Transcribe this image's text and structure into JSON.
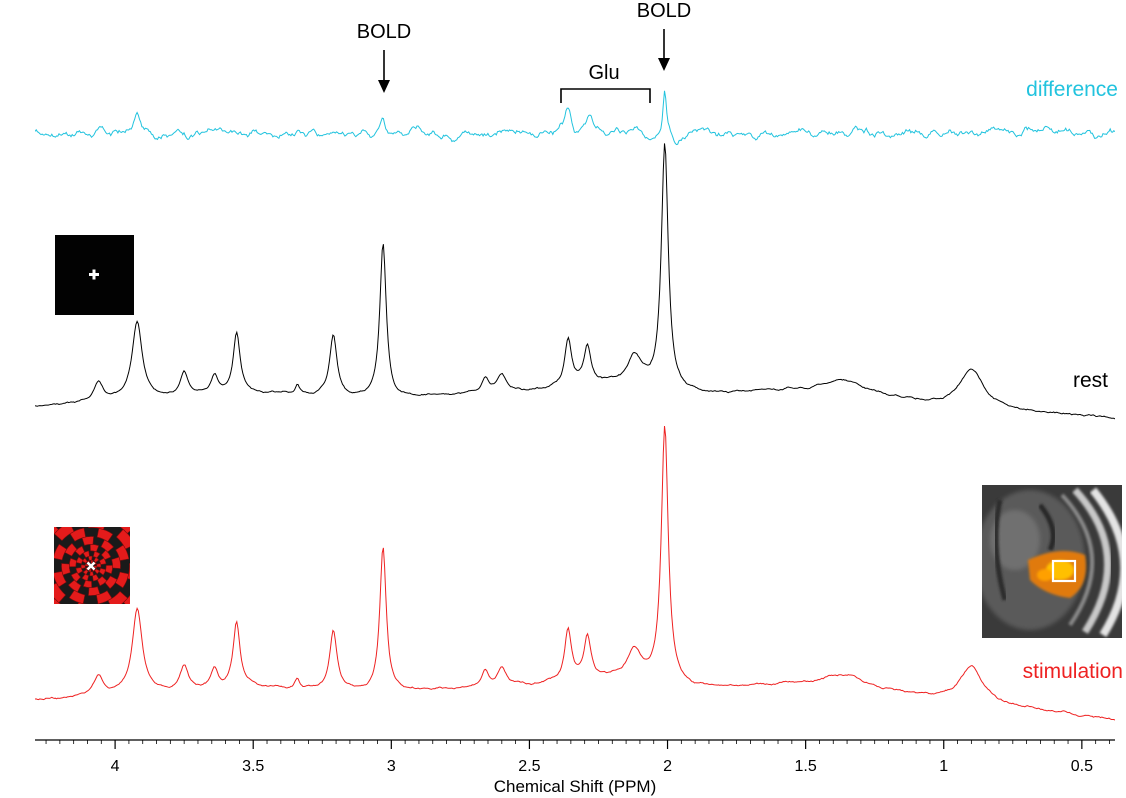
{
  "chart_data": {
    "type": "line",
    "title": "",
    "xlabel": "Chemical Shift (PPM)",
    "ylabel": "",
    "xlim": [
      4.29,
      0.38
    ],
    "x_reversed": true,
    "xticks": [
      4,
      3.5,
      3,
      2.5,
      2,
      1.5,
      1,
      0.5
    ],
    "xtick_labels": [
      "4",
      "3.5",
      "3",
      "2.5",
      "2",
      "1.5",
      "1",
      "0.5"
    ],
    "grid": false,
    "series": [
      {
        "name": "difference",
        "color": "#22c3de",
        "offset": 0.0,
        "noise": 0.1,
        "baseline": [
          [
            4.29,
            0.0
          ],
          [
            0.38,
            0.0
          ]
        ],
        "peaks": [
          [
            3.92,
            0.18,
            0.012
          ],
          [
            3.03,
            0.18,
            0.01
          ],
          [
            2.36,
            0.22,
            0.012
          ],
          [
            2.28,
            0.16,
            0.012
          ],
          [
            2.01,
            0.48,
            0.008
          ],
          [
            1.97,
            -0.14,
            0.012
          ]
        ]
      },
      {
        "name": "rest",
        "color": "#000000",
        "offset": 0.0,
        "noise": 0.012,
        "baseline": [
          [
            4.29,
            0.0
          ],
          [
            4.0,
            0.02
          ],
          [
            3.5,
            0.05
          ],
          [
            3.0,
            0.03
          ],
          [
            2.5,
            0.06
          ],
          [
            2.2,
            0.09
          ],
          [
            1.9,
            0.05
          ],
          [
            1.4,
            0.07
          ],
          [
            1.0,
            0.0
          ],
          [
            0.38,
            -0.05
          ]
        ],
        "peaks": [
          [
            4.06,
            0.08,
            0.02
          ],
          [
            3.92,
            0.32,
            0.022
          ],
          [
            3.75,
            0.1,
            0.018
          ],
          [
            3.64,
            0.08,
            0.016
          ],
          [
            3.56,
            0.25,
            0.015
          ],
          [
            3.34,
            0.04,
            0.01
          ],
          [
            3.21,
            0.25,
            0.016
          ],
          [
            3.03,
            0.63,
            0.014
          ],
          [
            2.66,
            0.06,
            0.015
          ],
          [
            2.6,
            0.07,
            0.02
          ],
          [
            2.36,
            0.19,
            0.015
          ],
          [
            2.29,
            0.16,
            0.015
          ],
          [
            2.12,
            0.12,
            0.03
          ],
          [
            2.01,
            1.0,
            0.015
          ],
          [
            1.35,
            0.04,
            0.08
          ],
          [
            0.9,
            0.16,
            0.05
          ]
        ]
      },
      {
        "name": "stimulation",
        "color": "#ee2222",
        "offset": 0.0,
        "noise": 0.012,
        "baseline": [
          [
            4.29,
            0.0
          ],
          [
            4.0,
            0.02
          ],
          [
            3.5,
            0.05
          ],
          [
            3.0,
            0.03
          ],
          [
            2.5,
            0.06
          ],
          [
            2.2,
            0.09
          ],
          [
            1.9,
            0.05
          ],
          [
            1.4,
            0.07
          ],
          [
            1.0,
            0.0
          ],
          [
            0.38,
            -0.08
          ]
        ],
        "peaks": [
          [
            4.06,
            0.08,
            0.02
          ],
          [
            3.92,
            0.35,
            0.022
          ],
          [
            3.75,
            0.1,
            0.018
          ],
          [
            3.64,
            0.08,
            0.016
          ],
          [
            3.56,
            0.27,
            0.015
          ],
          [
            3.34,
            0.04,
            0.01
          ],
          [
            3.21,
            0.24,
            0.016
          ],
          [
            3.03,
            0.6,
            0.014
          ],
          [
            2.66,
            0.06,
            0.015
          ],
          [
            2.6,
            0.07,
            0.02
          ],
          [
            2.36,
            0.21,
            0.015
          ],
          [
            2.29,
            0.17,
            0.015
          ],
          [
            2.12,
            0.12,
            0.03
          ],
          [
            2.01,
            1.05,
            0.015
          ],
          [
            1.35,
            0.04,
            0.08
          ],
          [
            0.9,
            0.15,
            0.05
          ]
        ]
      }
    ],
    "annotations": [
      {
        "label": "BOLD",
        "x": 3.03,
        "type": "arrow"
      },
      {
        "label": "BOLD",
        "x": 2.01,
        "type": "arrow"
      },
      {
        "label": "Glu",
        "x_range": [
          2.39,
          2.07
        ],
        "type": "bracket"
      }
    ],
    "insets": [
      {
        "name": "rest-stimulus",
        "description": "fixation cross"
      },
      {
        "name": "stimulation-stimulus",
        "description": "flickering checkerboard"
      },
      {
        "name": "brain-mri",
        "description": "activation map with voxel"
      }
    ]
  }
}
